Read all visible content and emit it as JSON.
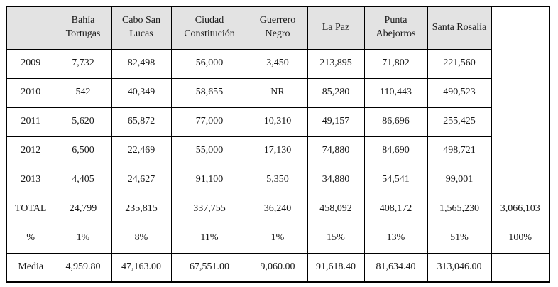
{
  "colors": {
    "header_background": "#e3e3e3",
    "border": "#000000",
    "cell_background": "#ffffff"
  },
  "table": {
    "column_headers": [
      "",
      "Bahía Tortugas",
      "Cabo San Lucas",
      "Ciudad Constitución",
      "Guerrero Negro",
      "La Paz",
      "Punta Abejorros",
      "Santa Rosalía"
    ],
    "rows": [
      {
        "label": "2009",
        "cells": [
          "7,732",
          "82,498",
          "56,000",
          "3,450",
          "213,895",
          "71,802",
          "221,560"
        ]
      },
      {
        "label": "2010",
        "cells": [
          "542",
          "40,349",
          "58,655",
          "NR",
          "85,280",
          "110,443",
          "490,523"
        ]
      },
      {
        "label": "2011",
        "cells": [
          "5,620",
          "65,872",
          "77,000",
          "10,310",
          "49,157",
          "86,696",
          "255,425"
        ]
      },
      {
        "label": "2012",
        "cells": [
          "6,500",
          "22,469",
          "55,000",
          "17,130",
          "74,880",
          "84,690",
          "498,721"
        ]
      },
      {
        "label": "2013",
        "cells": [
          "4,405",
          "24,627",
          "91,100",
          "5,350",
          "34,880",
          "54,541",
          "99,001"
        ]
      }
    ],
    "total_row": {
      "label": "TOTAL",
      "cells": [
        "24,799",
        "235,815",
        "337,755",
        "36,240",
        "458,092",
        "408,172",
        "1,565,230"
      ],
      "grand_total": "3,066,103"
    },
    "percent_row": {
      "label": "%",
      "cells": [
        "1%",
        "8%",
        "11%",
        "1%",
        "15%",
        "13%",
        "51%"
      ],
      "grand_total": "100%"
    },
    "media_row": {
      "label": "Media",
      "cells": [
        "4,959.80",
        "47,163.00",
        "67,551.00",
        "9,060.00",
        "91,618.40",
        "81,634.40",
        "313,046.00"
      ],
      "grand_total": ""
    }
  }
}
